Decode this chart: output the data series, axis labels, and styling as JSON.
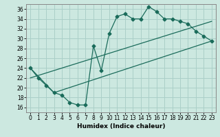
{
  "xlabel": "Humidex (Indice chaleur)",
  "xlim": [
    -0.5,
    23.5
  ],
  "ylim": [
    15,
    37
  ],
  "xticks": [
    0,
    1,
    2,
    3,
    4,
    5,
    6,
    7,
    8,
    9,
    10,
    11,
    12,
    13,
    14,
    15,
    16,
    17,
    18,
    19,
    20,
    21,
    22,
    23
  ],
  "yticks": [
    16,
    18,
    20,
    22,
    24,
    26,
    28,
    30,
    32,
    34,
    36
  ],
  "bg_color": "#cce8e0",
  "grid_color": "#aacfc8",
  "line_color": "#1a6b5a",
  "line1_x": [
    0,
    1,
    2,
    3,
    4,
    5,
    6,
    7,
    8,
    9,
    10,
    11,
    12,
    13,
    14,
    15,
    16,
    17,
    18,
    19,
    20,
    21,
    22,
    23
  ],
  "line1_y": [
    24,
    22,
    20.5,
    19,
    18.5,
    17.0,
    16.5,
    16.5,
    28.5,
    23.5,
    31,
    34.5,
    35,
    34,
    34,
    36.5,
    35.5,
    34,
    34,
    33.5,
    33,
    31.5,
    30.5,
    29.5
  ],
  "line2_x": [
    0,
    3,
    23
  ],
  "line2_y": [
    24,
    19,
    29.5
  ],
  "line3_x": [
    0,
    23
  ],
  "line3_y": [
    22,
    33.5
  ],
  "marker": "D",
  "markersize": 2.5,
  "linewidth": 0.9
}
